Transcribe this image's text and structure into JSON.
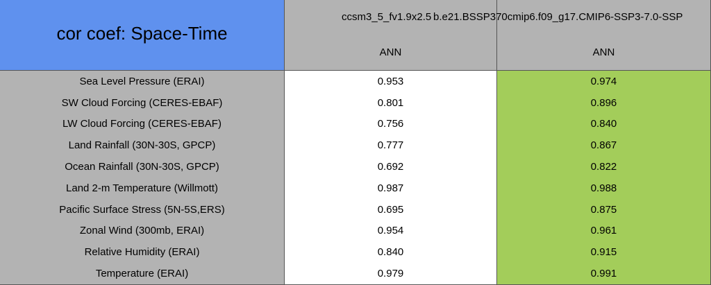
{
  "table": {
    "title": "cor coef: Space-Time",
    "columns": [
      "ccsm3_5_fv1.9x2.5",
      "b.e21.BSSP370cmip6.f09_g17.CMIP6-SSP3-7.0-SSP"
    ],
    "seasons": [
      "ANN",
      "ANN"
    ],
    "rows": [
      [
        "Sea Level Pressure (ERAI)",
        "0.953",
        "0.974"
      ],
      [
        "SW Cloud Forcing (CERES-EBAF)",
        "0.801",
        "0.896"
      ],
      [
        "LW Cloud Forcing (CERES-EBAF)",
        "0.756",
        "0.840"
      ],
      [
        "Land Rainfall (30N-30S, GPCP)",
        "0.777",
        "0.867"
      ],
      [
        "Ocean Rainfall (30N-30S, GPCP)",
        "0.692",
        "0.822"
      ],
      [
        "Land 2-m Temperature (Willmott)",
        "0.987",
        "0.988"
      ],
      [
        "Pacific Surface Stress (5N-5S,ERS)",
        "0.695",
        "0.875"
      ],
      [
        "Zonal Wind (300mb, ERAI)",
        "0.954",
        "0.961"
      ],
      [
        "Relative Humidity (ERAI)",
        "0.840",
        "0.915"
      ],
      [
        "Temperature (ERAI)",
        "0.979",
        "0.991"
      ]
    ]
  }
}
